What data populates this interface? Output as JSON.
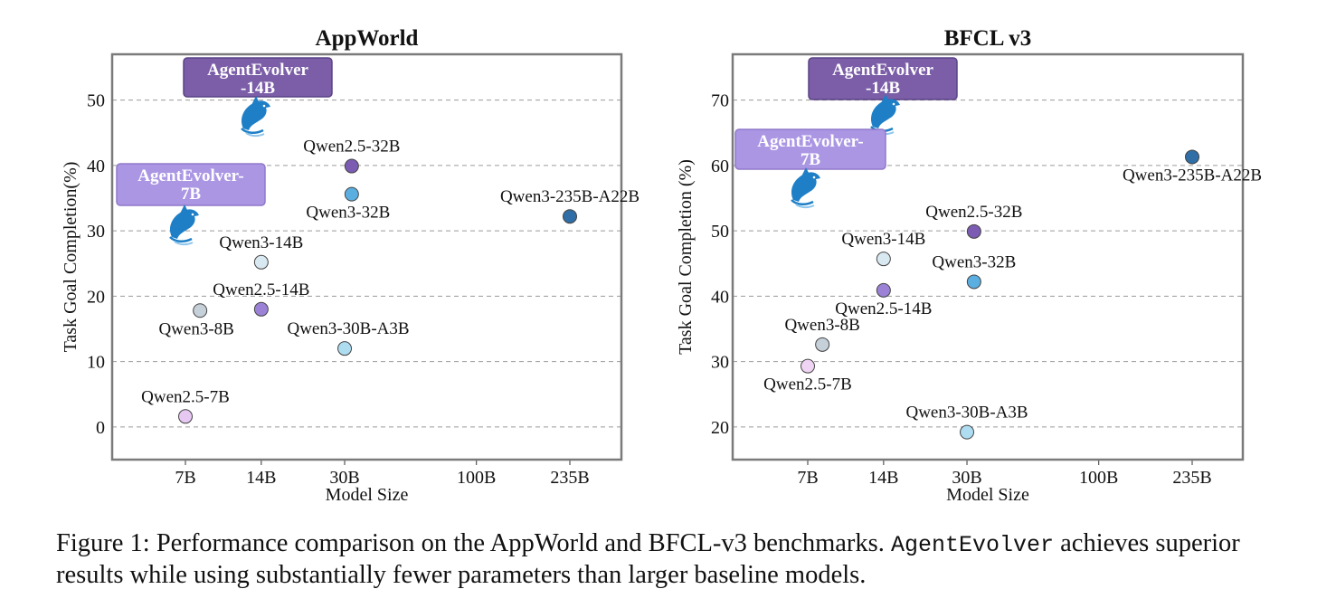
{
  "colors": {
    "frame": "#7a7a7a",
    "grid": "#9a9a9a",
    "badge_14b": "#7b5ea7",
    "badge_7b": "#ab96e4",
    "dolphin": "#1e7fc7"
  },
  "chart_data": [
    {
      "type": "scatter",
      "title": "AppWorld",
      "xlabel": "Model Size",
      "ylabel": "Task Goal Completion(%)",
      "x_scale": "log",
      "x_ticks": [
        "7B",
        "14B",
        "30B",
        "100B",
        "235B"
      ],
      "y_ticks": [
        "0",
        "10",
        "20",
        "30",
        "40",
        "50"
      ],
      "ylim": [
        -5,
        57
      ],
      "grid": "horizontal dashed",
      "points": [
        {
          "label": "Qwen2.5-7B",
          "x": 7,
          "y": 1.6,
          "color": "#e6c8f2",
          "label_pos": "above"
        },
        {
          "label": "Qwen3-8B",
          "x": 8,
          "y": 17.8,
          "color": "#c5d0d9",
          "label_pos": "below"
        },
        {
          "label": "Qwen3-14B",
          "x": 14,
          "y": 25.2,
          "color": "#d9e9f1",
          "label_pos": "above"
        },
        {
          "label": "Qwen2.5-14B",
          "x": 14,
          "y": 18.0,
          "color": "#9c82d6",
          "label_pos": "above"
        },
        {
          "label": "Qwen3-30B-A3B",
          "x": 30,
          "y": 12.0,
          "color": "#aedcf1",
          "label_pos": "above-right"
        },
        {
          "label": "Qwen2.5-32B",
          "x": 32,
          "y": 39.9,
          "color": "#7c5cb3",
          "label_pos": "above"
        },
        {
          "label": "Qwen3-32B",
          "x": 32,
          "y": 35.6,
          "color": "#5aaee0",
          "label_pos": "below"
        },
        {
          "label": "Qwen3-235B-A22B",
          "x": 235,
          "y": 32.2,
          "color": "#2f6ea6",
          "label_pos": "above"
        }
      ],
      "highlights": [
        {
          "line1": "AgentEvolver",
          "line2": "-14B",
          "style": "dark"
        },
        {
          "line1": "AgentEvolver-",
          "line2": "7B",
          "style": "light"
        }
      ]
    },
    {
      "type": "scatter",
      "title": "BFCL v3",
      "xlabel": "Model Size",
      "ylabel": "Task Goal Completion (%)",
      "x_scale": "log",
      "x_ticks": [
        "7B",
        "14B",
        "30B",
        "100B",
        "235B"
      ],
      "y_ticks": [
        "20",
        "30",
        "40",
        "50",
        "60",
        "70"
      ],
      "ylim": [
        15,
        77
      ],
      "grid": "horizontal dashed",
      "points": [
        {
          "label": "Qwen2.5-7B",
          "x": 7,
          "y": 29.3,
          "color": "#f0d4f4",
          "label_pos": "below"
        },
        {
          "label": "Qwen3-8B",
          "x": 8,
          "y": 32.6,
          "color": "#c5d0d9",
          "label_pos": "above"
        },
        {
          "label": "Qwen3-14B",
          "x": 14,
          "y": 45.7,
          "color": "#d9e9f1",
          "label_pos": "above"
        },
        {
          "label": "Qwen2.5-14B",
          "x": 14,
          "y": 40.9,
          "color": "#9c82d6",
          "label_pos": "below"
        },
        {
          "label": "Qwen3-30B-A3B",
          "x": 30,
          "y": 19.2,
          "color": "#aedcf1",
          "label_pos": "above"
        },
        {
          "label": "Qwen2.5-32B",
          "x": 32,
          "y": 49.9,
          "color": "#7c5cb3",
          "label_pos": "above"
        },
        {
          "label": "Qwen3-32B",
          "x": 32,
          "y": 42.2,
          "color": "#5aaee0",
          "label_pos": "above"
        },
        {
          "label": "Qwen3-235B-A22B",
          "x": 235,
          "y": 61.3,
          "color": "#2f6ea6",
          "label_pos": "below"
        }
      ],
      "highlights": [
        {
          "line1": "AgentEvolver",
          "line2": "-14B",
          "style": "dark"
        },
        {
          "line1": "AgentEvolver-",
          "line2": "7B",
          "style": "light"
        }
      ]
    }
  ],
  "caption": {
    "prefix": "Figure 1: Performance comparison on the AppWorld and BFCL-v3 benchmarks. ",
    "mono": "AgentEvolver",
    "suffix": " achieves superior results while using substantially fewer parameters than larger baseline models."
  }
}
